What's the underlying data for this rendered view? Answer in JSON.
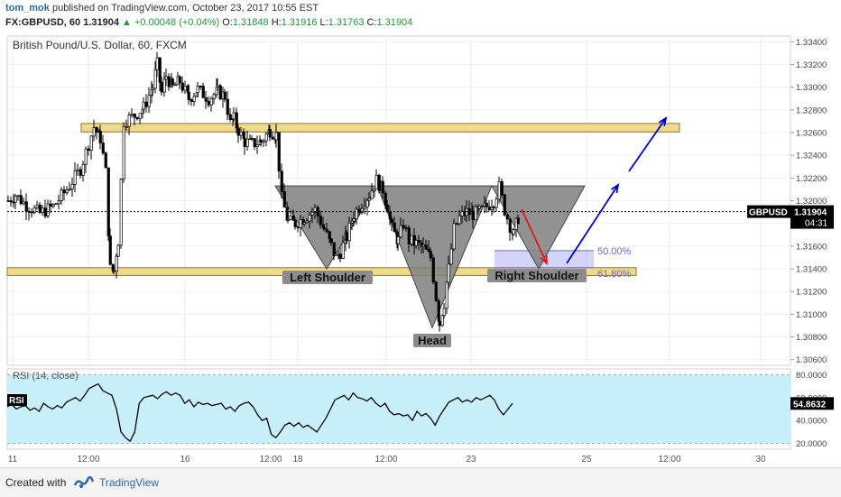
{
  "header": {
    "user": "tom_mok",
    "published": " published on TradingView.com, October 23, 2017 10:55 EST",
    "symbol_line": "FX:GBPUSD, 60",
    "last": "1.31904",
    "change": "▲ +0.00048 (+0.04%)",
    "o_label": "O:",
    "o": "1.31848",
    "h_label": "H:",
    "h": "1.31916",
    "l_label": "L:",
    "l": "1.31763",
    "c_label": "C:",
    "c": "1.31904"
  },
  "footer": {
    "created_with": "Created with",
    "brand": "TradingView"
  },
  "colors": {
    "up_candle": "#ffffff",
    "down_candle": "#000000",
    "zone_line": "#f3d98a",
    "pattern_fill": "#7f7f7f",
    "rsi_bg": "#c7f0fb",
    "arrow_blue": "#0000cc",
    "arrow_red": "#e01b1b",
    "fib_box": "#c9c9f7"
  },
  "chart_data": [
    {
      "type": "candlestick",
      "title": "British Pound/U.S. Dollar, 60, FXCM",
      "ylim": [
        1.3055,
        1.3345
      ],
      "y_ticks": [
        "1.33400",
        "1.33200",
        "1.33000",
        "1.32800",
        "1.32600",
        "1.32400",
        "1.32200",
        "1.32000",
        "1.31800",
        "1.31600",
        "1.31400",
        "1.31200",
        "1.31000",
        "1.30800",
        "1.30600"
      ],
      "x_ticks": [
        "11",
        "12:00",
        "16",
        "12:00",
        "18",
        "12:00",
        "23",
        "25",
        "12:00",
        "30"
      ],
      "last_price_label": "GBPUSD",
      "last_price": "1.31904",
      "countdown": "04:31",
      "close_path": [
        [
          0,
          1.32
        ],
        [
          8,
          1.3205
        ],
        [
          20,
          1.3196
        ],
        [
          35,
          1.3189
        ],
        [
          50,
          1.3195
        ],
        [
          65,
          1.321
        ],
        [
          80,
          1.3228
        ],
        [
          95,
          1.3265
        ],
        [
          102,
          1.3255
        ],
        [
          108,
          1.3225
        ],
        [
          113,
          1.314
        ],
        [
          117,
          1.3138
        ],
        [
          122,
          1.3165
        ],
        [
          128,
          1.327
        ],
        [
          140,
          1.3275
        ],
        [
          150,
          1.3282
        ],
        [
          160,
          1.33
        ],
        [
          165,
          1.332
        ],
        [
          170,
          1.3295
        ],
        [
          175,
          1.331
        ],
        [
          182,
          1.33
        ],
        [
          190,
          1.3305
        ],
        [
          200,
          1.329
        ],
        [
          210,
          1.3298
        ],
        [
          222,
          1.329
        ],
        [
          232,
          1.3296
        ],
        [
          240,
          1.3292
        ],
        [
          246,
          1.3268
        ],
        [
          250,
          1.3272
        ],
        [
          255,
          1.3262
        ],
        [
          262,
          1.3252
        ],
        [
          270,
          1.325
        ],
        [
          280,
          1.3252
        ],
        [
          290,
          1.3262
        ],
        [
          297,
          1.3258
        ],
        [
          303,
          1.3202
        ],
        [
          310,
          1.3182
        ],
        [
          318,
          1.318
        ],
        [
          328,
          1.3185
        ],
        [
          340,
          1.3192
        ],
        [
          350,
          1.3175
        ],
        [
          358,
          1.316
        ],
        [
          363,
          1.315
        ],
        [
          368,
          1.3155
        ],
        [
          375,
          1.3168
        ],
        [
          383,
          1.3188
        ],
        [
          392,
          1.3198
        ],
        [
          400,
          1.3205
        ],
        [
          408,
          1.3218
        ],
        [
          415,
          1.321
        ],
        [
          420,
          1.3195
        ],
        [
          425,
          1.3175
        ],
        [
          432,
          1.3165
        ],
        [
          438,
          1.318
        ],
        [
          444,
          1.3165
        ],
        [
          452,
          1.3162
        ],
        [
          460,
          1.3158
        ],
        [
          468,
          1.315
        ],
        [
          474,
          1.3115
        ],
        [
          478,
          1.3092
        ],
        [
          483,
          1.311
        ],
        [
          488,
          1.314
        ],
        [
          494,
          1.3175
        ],
        [
          500,
          1.3185
        ],
        [
          508,
          1.319
        ],
        [
          515,
          1.3188
        ],
        [
          522,
          1.319
        ],
        [
          530,
          1.3195
        ],
        [
          538,
          1.32
        ],
        [
          544,
          1.3212
        ],
        [
          550,
          1.3192
        ],
        [
          556,
          1.3178
        ],
        [
          560,
          1.317
        ],
        [
          565,
          1.3185
        ],
        [
          568,
          1.319
        ]
      ],
      "resistance_zone": [
        1.3263,
        1.3268
      ],
      "support_zone": [
        1.31365,
        1.3141
      ],
      "pattern": {
        "neckline": 1.3213,
        "left_shoulder_low": 1.314,
        "head_low": 1.3088,
        "right_shoulder_low": 1.314,
        "labels": [
          "Left Shoulder",
          "Head",
          "Right Shoulder"
        ]
      },
      "fibonacci": [
        {
          "label": "50.00%",
          "value": 1.3156
        },
        {
          "label": "61.80%",
          "value": 1.3141
        }
      ],
      "projection_target": 1.327
    },
    {
      "type": "line",
      "title": "RSI (14, close)",
      "label": "RSI",
      "ylim": [
        15,
        85
      ],
      "y_ticks": [
        "80.0000",
        "60.0000",
        "40.0000",
        "20.0000"
      ],
      "bands": [
        20,
        80
      ],
      "last_value": "54.8632",
      "values": [
        52,
        54,
        50,
        52,
        53,
        49,
        51,
        48,
        55,
        52,
        50,
        53,
        51,
        56,
        58,
        60,
        57,
        62,
        68,
        70,
        72,
        66,
        64,
        62,
        50,
        30,
        25,
        22,
        30,
        55,
        60,
        61,
        62,
        59,
        63,
        65,
        62,
        64,
        62,
        55,
        58,
        52,
        56,
        54,
        55,
        53,
        54,
        55,
        50,
        52,
        48,
        53,
        55,
        56,
        52,
        45,
        40,
        42,
        28,
        25,
        30,
        36,
        38,
        35,
        38,
        34,
        36,
        33,
        30,
        36,
        42,
        50,
        58,
        60,
        62,
        58,
        64,
        60,
        59,
        57,
        60,
        55,
        52,
        55,
        48,
        45,
        46,
        44,
        45,
        40,
        48,
        44,
        46,
        42,
        36,
        44,
        50,
        56,
        58,
        60,
        56,
        58,
        56,
        60,
        58,
        60,
        62,
        58,
        50,
        45,
        50,
        55
      ]
    }
  ]
}
